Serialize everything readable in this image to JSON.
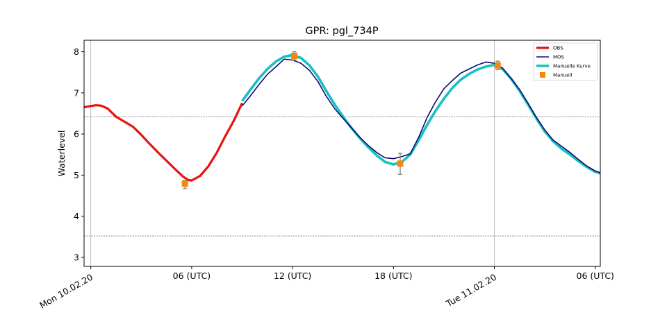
{
  "chart_data": {
    "type": "line",
    "title": "GPR: pgl_734P",
    "ylabel": "Waterlevel",
    "xlabel": "",
    "xlim": [
      -0.4,
      30.3
    ],
    "ylim": [
      2.78,
      8.28
    ],
    "x_unit": "hours from Mon 10.02.20 00 UTC",
    "xticks": [
      {
        "x": 0,
        "label": "Mon 10.02.20",
        "rotated": true
      },
      {
        "x": 6,
        "label": "06 (UTC)",
        "rotated": false
      },
      {
        "x": 12,
        "label": "12 (UTC)",
        "rotated": false
      },
      {
        "x": 18,
        "label": "18 (UTC)",
        "rotated": false
      },
      {
        "x": 24,
        "label": "Tue 11.02.20",
        "rotated": true
      },
      {
        "x": 30,
        "label": "06 (UTC)",
        "rotated": false
      }
    ],
    "yticks": [
      3,
      4,
      5,
      6,
      7,
      8
    ],
    "vlines": [
      0,
      24
    ],
    "hlines": [
      6.42,
      3.52
    ],
    "legend_position": "top-right",
    "colors": {
      "OBS": "#e8120c",
      "MOS": "#0b0b6e",
      "Manuelle Kurve": "#17bfc4",
      "Manuell": "#f5870c",
      "errorbar": "#8c8c8c"
    },
    "series": [
      {
        "name": "OBS",
        "style": "line",
        "x": [
          -0.4,
          0,
          0.3,
          0.6,
          1,
          1.5,
          2,
          2.5,
          3,
          3.5,
          4,
          4.5,
          5,
          5.5,
          5.8,
          6,
          6.5,
          7,
          7.5,
          8,
          8.5,
          9
        ],
        "y": [
          6.65,
          6.68,
          6.7,
          6.69,
          6.62,
          6.42,
          6.3,
          6.18,
          5.98,
          5.76,
          5.55,
          5.35,
          5.15,
          4.96,
          4.88,
          4.87,
          4.98,
          5.22,
          5.55,
          5.95,
          6.32,
          6.75
        ]
      },
      {
        "name": "MOS",
        "style": "line",
        "x": [
          9,
          9.5,
          10,
          10.5,
          11,
          11.5,
          12,
          12.5,
          13,
          13.5,
          14,
          14.5,
          15,
          15.5,
          16,
          16.5,
          17,
          17.5,
          18,
          18.5,
          19,
          19.5,
          20,
          20.5,
          21,
          21.5,
          22,
          22.5,
          23,
          23.5,
          24,
          24.5,
          25,
          25.5,
          26,
          26.5,
          27,
          27.5,
          28,
          28.5,
          29,
          29.5,
          30,
          30.3
        ],
        "y": [
          6.68,
          6.93,
          7.2,
          7.45,
          7.63,
          7.82,
          7.8,
          7.72,
          7.55,
          7.28,
          6.92,
          6.62,
          6.38,
          6.15,
          5.92,
          5.72,
          5.55,
          5.42,
          5.4,
          5.45,
          5.52,
          5.92,
          6.4,
          6.78,
          7.1,
          7.3,
          7.48,
          7.58,
          7.68,
          7.75,
          7.72,
          7.6,
          7.35,
          7.08,
          6.75,
          6.4,
          6.1,
          5.85,
          5.7,
          5.55,
          5.38,
          5.22,
          5.1,
          5.06
        ]
      },
      {
        "name": "Manuelle Kurve",
        "style": "line",
        "x": [
          9,
          9.5,
          10,
          10.5,
          11,
          11.5,
          12,
          12.5,
          13,
          13.5,
          14,
          14.5,
          15,
          15.5,
          16,
          16.5,
          17,
          17.5,
          18,
          18.5,
          19,
          19.5,
          20,
          20.5,
          21,
          21.5,
          22,
          22.5,
          23,
          23.5,
          24,
          24.5,
          25,
          25.5,
          26,
          26.5,
          27,
          27.5,
          28,
          28.5,
          29,
          29.5,
          30,
          30.3
        ],
        "y": [
          6.8,
          7.08,
          7.35,
          7.58,
          7.76,
          7.88,
          7.92,
          7.85,
          7.67,
          7.4,
          7.05,
          6.72,
          6.42,
          6.15,
          5.9,
          5.68,
          5.48,
          5.32,
          5.26,
          5.32,
          5.5,
          5.85,
          6.22,
          6.56,
          6.86,
          7.12,
          7.32,
          7.46,
          7.57,
          7.64,
          7.68,
          7.57,
          7.34,
          7.05,
          6.72,
          6.38,
          6.06,
          5.82,
          5.64,
          5.5,
          5.34,
          5.2,
          5.08,
          5.04
        ]
      },
      {
        "name": "Manuell",
        "style": "marker",
        "x": [
          5.6,
          12.1,
          18.4,
          24.2
        ],
        "y": [
          4.79,
          7.9,
          5.28,
          7.67
        ],
        "err_low": [
          0.12,
          0.1,
          0.26,
          0.1
        ],
        "err_high": [
          0.08,
          0.1,
          0.25,
          0.1
        ]
      }
    ]
  }
}
